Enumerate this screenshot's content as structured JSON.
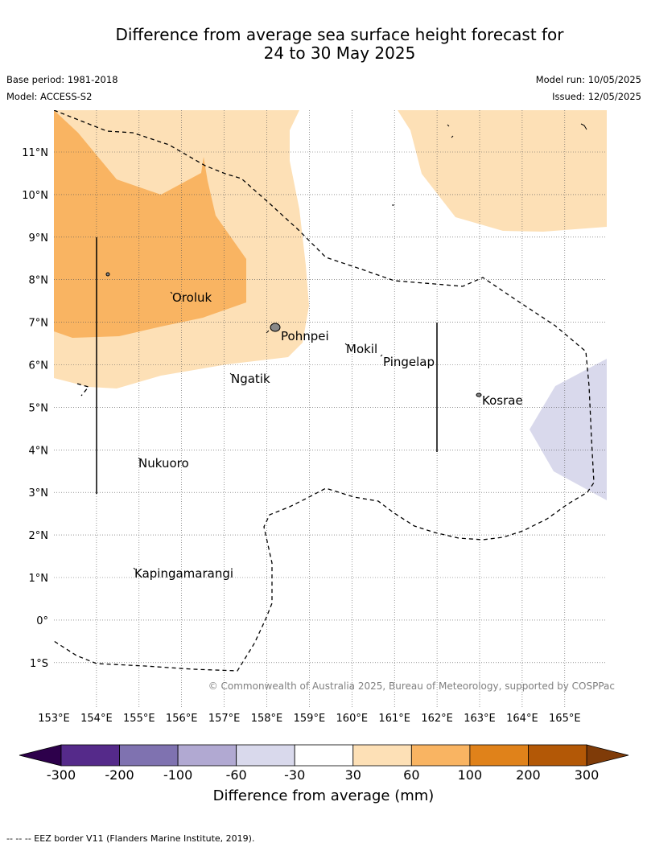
{
  "header": {
    "title_line1": "Difference from average sea surface height forecast for",
    "title_line2": "24 to 30 May 2025",
    "base_period": "Base period: 1981-2018",
    "model": "Model: ACCESS-S2",
    "model_run": "Model run: 10/05/2025",
    "issued": "Issued: 12/05/2025"
  },
  "map": {
    "lon_ticks": [
      "153°E",
      "154°E",
      "155°E",
      "156°E",
      "157°E",
      "158°E",
      "159°E",
      "160°E",
      "161°E",
      "162°E",
      "163°E",
      "164°E",
      "165°E"
    ],
    "lat_ticks": [
      "11°N",
      "10°N",
      "9°N",
      "8°N",
      "7°N",
      "6°N",
      "5°N",
      "4°N",
      "3°N",
      "2°N",
      "1°N",
      "0°",
      "1°S"
    ],
    "places": [
      "Oroluk",
      "Pohnpei",
      "Mokil",
      "Pingelap",
      "Ngatik",
      "Kosrae",
      "Nukuoro",
      "Kapingamarangi"
    ],
    "copyright": "© Commonwealth of Australia 2025, Bureau of Meteorology, supported by COSPPac"
  },
  "colorbar": {
    "labels": [
      "-300",
      "-200",
      "-100",
      "-60",
      "-30",
      "30",
      "60",
      "100",
      "200",
      "300"
    ],
    "colors": [
      "#552a8a",
      "#7f72b0",
      "#b1a9d2",
      "#d9d9ec",
      "#ffffff",
      "#fde0b6",
      "#f9b462",
      "#e0821a",
      "#b35806"
    ],
    "under_color": "#2d004b",
    "over_color": "#7f3b08",
    "title": "Difference from average (mm)"
  },
  "footer": {
    "text": "--  --  -- EEZ border V11 (Flanders Marine Institute, 2019)."
  }
}
